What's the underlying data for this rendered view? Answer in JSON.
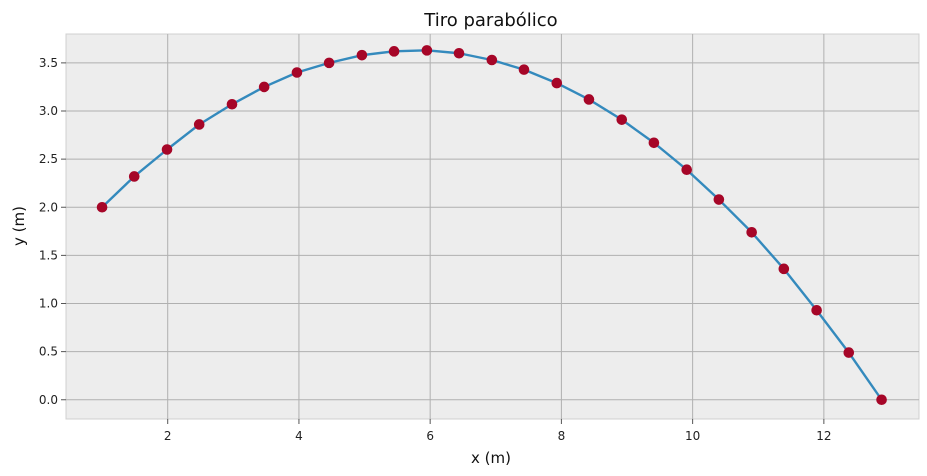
{
  "chart_data": {
    "type": "line",
    "title": "Tiro parabólico",
    "xlabel": "x (m)",
    "ylabel": "y (m)",
    "xlim": [
      0.45,
      13.45
    ],
    "ylim": [
      -0.2,
      3.8
    ],
    "grid": true,
    "xticks": [
      2,
      4,
      6,
      8,
      10,
      12
    ],
    "yticks": [
      0.0,
      0.5,
      1.0,
      1.5,
      2.0,
      2.5,
      3.0,
      3.5
    ],
    "series": [
      {
        "color": "#348ABD",
        "markerColor": "#A60628",
        "x": [
          1.0,
          1.49,
          1.99,
          2.48,
          2.98,
          3.47,
          3.97,
          4.46,
          4.96,
          5.45,
          5.95,
          6.44,
          6.94,
          7.43,
          7.93,
          8.42,
          8.92,
          9.41,
          9.91,
          10.4,
          10.9,
          11.39,
          11.89,
          12.38,
          12.88
        ],
        "y": [
          2.0,
          2.32,
          2.6,
          2.86,
          3.07,
          3.25,
          3.4,
          3.5,
          3.58,
          3.62,
          3.63,
          3.6,
          3.53,
          3.43,
          3.29,
          3.12,
          2.91,
          2.67,
          2.39,
          2.08,
          1.74,
          1.36,
          0.93,
          0.49,
          0.0
        ]
      }
    ]
  }
}
